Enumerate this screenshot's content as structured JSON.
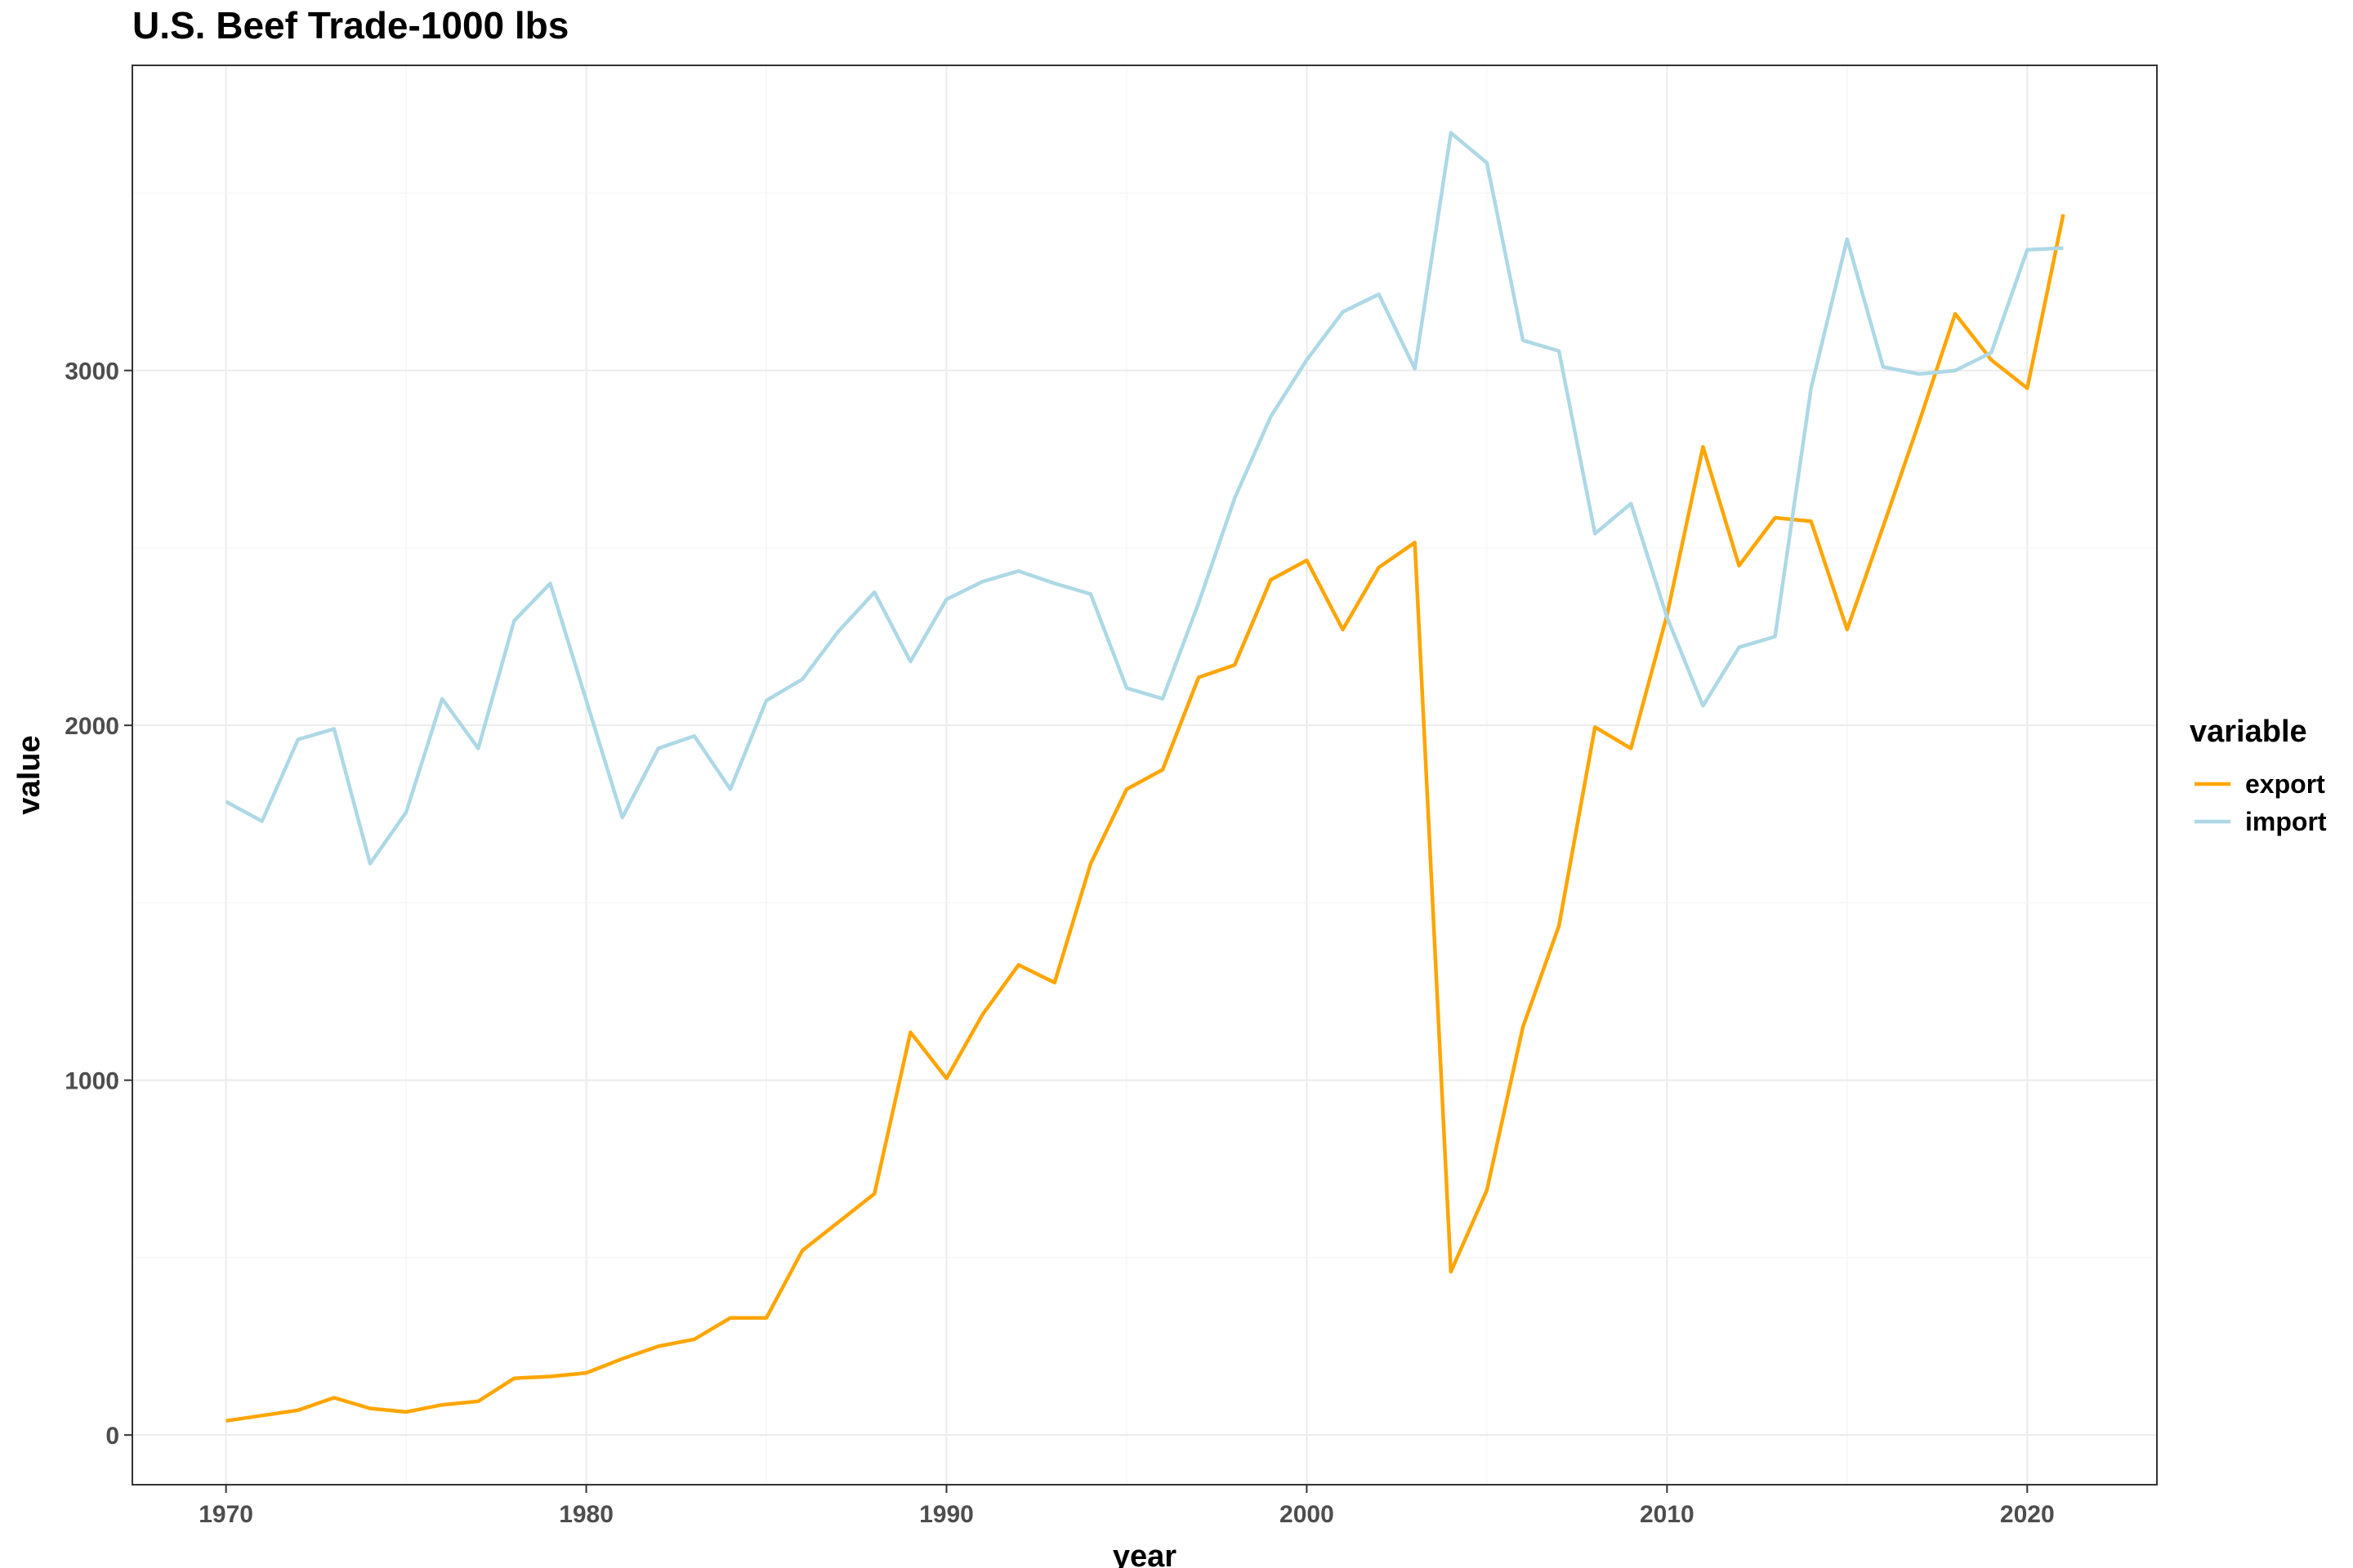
{
  "chart_data": {
    "type": "line",
    "title": "U.S. Beef Trade-1000 lbs",
    "xlabel": "year",
    "ylabel": "value",
    "xlim": [
      1967.4,
      2023.6
    ],
    "ylim": [
      -140,
      3860
    ],
    "x_ticks": [
      1970,
      1980,
      1990,
      2000,
      2010,
      2020
    ],
    "y_ticks": [
      0,
      1000,
      2000,
      3000
    ],
    "grid": true,
    "legend": {
      "title": "variable",
      "position": "right"
    },
    "x": [
      1970,
      1971,
      1972,
      1973,
      1974,
      1975,
      1976,
      1977,
      1978,
      1979,
      1980,
      1981,
      1982,
      1983,
      1984,
      1985,
      1986,
      1987,
      1988,
      1989,
      1990,
      1991,
      1992,
      1993,
      1994,
      1995,
      1996,
      1997,
      1998,
      1999,
      2000,
      2001,
      2002,
      2003,
      2004,
      2005,
      2006,
      2007,
      2008,
      2009,
      2010,
      2011,
      2012,
      2013,
      2014,
      2015,
      2016,
      2017,
      2018,
      2019,
      2020,
      2021
    ],
    "series": [
      {
        "name": "export",
        "color": "#FFA500",
        "values": [
          40,
          55,
          70,
          105,
          75,
          65,
          85,
          95,
          160,
          165,
          175,
          215,
          250,
          270,
          330,
          330,
          520,
          600,
          680,
          1135,
          1005,
          1185,
          1325,
          1275,
          1610,
          1820,
          1875,
          2135,
          2170,
          2410,
          2465,
          2270,
          2445,
          2515,
          460,
          690,
          1150,
          1435,
          1995,
          1935,
          2310,
          2785,
          2450,
          2585,
          2575,
          2270,
          2560,
          2855,
          3160,
          3030,
          2950,
          3440
        ]
      },
      {
        "name": "import",
        "color": "#ADD8E6",
        "values": [
          1785,
          1730,
          1960,
          1990,
          1610,
          1755,
          2075,
          1935,
          2295,
          2400,
          2070,
          1740,
          1935,
          1970,
          1820,
          2070,
          2130,
          2265,
          2375,
          2180,
          2355,
          2405,
          2435,
          2400,
          2370,
          2105,
          2075,
          2345,
          2640,
          2870,
          3030,
          3165,
          3215,
          3005,
          3670,
          3585,
          3085,
          3055,
          2540,
          2625,
          2305,
          2055,
          2220,
          2250,
          2950,
          3370,
          3010,
          2990,
          3000,
          3050,
          3340,
          3345
        ]
      }
    ]
  }
}
